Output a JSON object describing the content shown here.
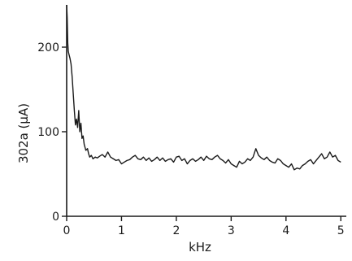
{
  "chart_data": {
    "type": "line",
    "title": "",
    "xlabel": "kHz",
    "ylabel": "302a (μA)",
    "xlim": [
      0,
      5.1
    ],
    "ylim": [
      0,
      250
    ],
    "xticks": [
      0,
      1,
      2,
      3,
      4,
      5
    ],
    "xtick_labels": [
      "0",
      "1",
      "2",
      "3",
      "4",
      "5"
    ],
    "yticks": [
      0,
      100,
      200
    ],
    "ytick_labels": [
      "0",
      "100",
      "200"
    ],
    "grid": false,
    "legend": "none",
    "line_color": "#1a1a1a",
    "series": [
      {
        "x": [
          0,
          0.01,
          0.02,
          0.03,
          0.04,
          0.06,
          0.08,
          0.1,
          0.12,
          0.14,
          0.16,
          0.18,
          0.2,
          0.22,
          0.24,
          0.26,
          0.28,
          0.3,
          0.32,
          0.35,
          0.38,
          0.4,
          0.42,
          0.45,
          0.48,
          0.52,
          0.56,
          0.6,
          0.65,
          0.7,
          0.75,
          0.8,
          0.85,
          0.9,
          0.95,
          1.0,
          1.05,
          1.1,
          1.15,
          1.2,
          1.25,
          1.3,
          1.35,
          1.4,
          1.45,
          1.5,
          1.55,
          1.6,
          1.65,
          1.7,
          1.75,
          1.8,
          1.85,
          1.9,
          1.95,
          2.0,
          2.05,
          2.1,
          2.15,
          2.2,
          2.25,
          2.3,
          2.35,
          2.4,
          2.45,
          2.5,
          2.55,
          2.6,
          2.65,
          2.7,
          2.75,
          2.8,
          2.85,
          2.9,
          2.95,
          3.0,
          3.05,
          3.1,
          3.15,
          3.2,
          3.25,
          3.3,
          3.35,
          3.4,
          3.45,
          3.5,
          3.55,
          3.6,
          3.65,
          3.7,
          3.75,
          3.8,
          3.85,
          3.9,
          3.95,
          4.0,
          4.05,
          4.1,
          4.15,
          4.2,
          4.25,
          4.3,
          4.35,
          4.4,
          4.45,
          4.5,
          4.55,
          4.6,
          4.65,
          4.7,
          4.75,
          4.8,
          4.85,
          4.9,
          4.95,
          5.0
        ],
        "y": [
          250,
          235,
          205,
          195,
          192,
          187,
          180,
          165,
          145,
          125,
          108,
          115,
          105,
          125,
          100,
          110,
          92,
          95,
          85,
          78,
          80,
          74,
          70,
          72,
          68,
          70,
          69,
          71,
          73,
          70,
          76,
          70,
          68,
          66,
          67,
          62,
          64,
          66,
          67,
          70,
          72,
          68,
          67,
          70,
          66,
          69,
          65,
          67,
          70,
          66,
          69,
          65,
          67,
          68,
          64,
          70,
          71,
          66,
          68,
          62,
          66,
          68,
          65,
          67,
          70,
          66,
          71,
          68,
          67,
          70,
          72,
          68,
          66,
          63,
          67,
          62,
          60,
          58,
          65,
          62,
          64,
          68,
          66,
          70,
          80,
          72,
          69,
          67,
          70,
          66,
          64,
          63,
          68,
          66,
          62,
          60,
          58,
          62,
          55,
          57,
          56,
          60,
          62,
          65,
          67,
          62,
          66,
          70,
          74,
          68,
          70,
          76,
          70,
          72,
          66,
          64
        ]
      }
    ]
  }
}
